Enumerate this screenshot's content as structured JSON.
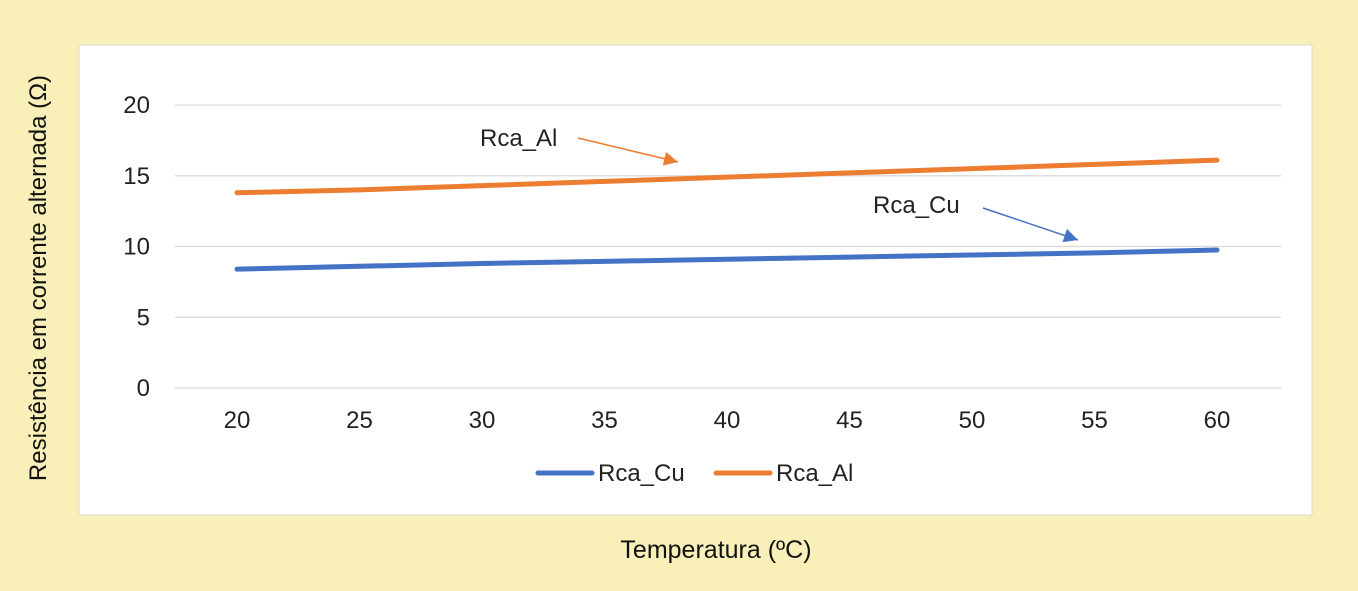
{
  "chart_data": {
    "type": "line",
    "title": "",
    "xlabel": "Temperatura (ºC)",
    "ylabel": "Resistência em corrente alternada (Ω)",
    "x": [
      20,
      25,
      30,
      35,
      40,
      45,
      50,
      55,
      60
    ],
    "xlim": [
      20,
      60
    ],
    "ylim": [
      0,
      20
    ],
    "yticks": [
      0,
      5,
      10,
      15,
      20
    ],
    "grid": true,
    "legend_position": "bottom",
    "series": [
      {
        "name": "Rca_Cu",
        "color": "#4472c4",
        "values": [
          8.4,
          8.6,
          8.8,
          8.95,
          9.1,
          9.25,
          9.4,
          9.55,
          9.75
        ]
      },
      {
        "name": "Rca_Al",
        "color": "#ed7d31",
        "values": [
          13.8,
          14.0,
          14.3,
          14.6,
          14.9,
          15.2,
          15.5,
          15.8,
          16.1
        ]
      }
    ],
    "annotations": [
      {
        "text": "Rca_Al",
        "series": "Rca_Al",
        "point_x": 38.5
      },
      {
        "text": "Rca_Cu",
        "series": "Rca_Cu",
        "point_x": 54.5
      }
    ]
  }
}
